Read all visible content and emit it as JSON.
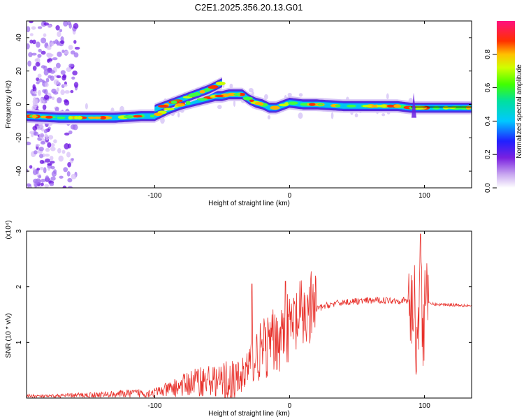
{
  "title": "C2E1.2025.356.20.13.G01",
  "chart_data": [
    {
      "type": "heatmap",
      "title": "C2E1.2025.356.20.13.G01",
      "xlabel": "Height of straight line (km)",
      "ylabel": "Frequency (Hz)",
      "xlim": [
        -195,
        135
      ],
      "ylim": [
        -50,
        50
      ],
      "x_ticks": [
        -100,
        0,
        100
      ],
      "x_tick_labels": [
        "-100",
        "0",
        "100"
      ],
      "y_ticks": [
        -40,
        -20,
        0,
        20,
        40
      ],
      "y_tick_labels": [
        "-40",
        "-20",
        "0",
        "20",
        "40"
      ],
      "colorbar": {
        "label": "Normalized spectral amplitude",
        "range": [
          0,
          1
        ],
        "ticks": [
          0.0,
          0.2,
          0.4,
          0.6,
          0.8
        ],
        "tick_labels": [
          "0.0",
          "0.2",
          "0.4",
          "0.6",
          "0.8"
        ]
      },
      "ridge": {
        "x": [
          -195,
          -170,
          -150,
          -130,
          -110,
          -100,
          -90,
          -80,
          -70,
          -60,
          -55,
          -50,
          -45,
          -40,
          -35,
          -30,
          -25,
          -20,
          -15,
          -10,
          0,
          10,
          20,
          40,
          60,
          80,
          90,
          95,
          100,
          120,
          135
        ],
        "y": [
          -7,
          -8,
          -8,
          -8,
          -7,
          -7,
          -3,
          0,
          2,
          4,
          5,
          5,
          6,
          6,
          6,
          3,
          1,
          0,
          -2,
          -2,
          1,
          0,
          0,
          -1,
          -1,
          -1,
          -2,
          -2,
          -2,
          -2,
          -2
        ]
      },
      "upper_branch": {
        "x": [
          -100,
          -90,
          -80,
          -70,
          -60,
          -55,
          -50
        ],
        "y": [
          -3,
          0,
          3,
          6,
          9,
          11,
          13
        ]
      },
      "spike_x": 92,
      "noise_band_x": [
        -195,
        -157
      ]
    },
    {
      "type": "line",
      "xlabel": "Height of straight line (km)",
      "ylabel": "SNR (10 * v/v)",
      "y_multiplier": "(x10⁴)",
      "xlim": [
        -195,
        135
      ],
      "ylim": [
        0,
        3
      ],
      "x_ticks": [
        -100,
        0,
        100
      ],
      "x_tick_labels": [
        "-100",
        "0",
        "100"
      ],
      "y_ticks": [
        1,
        2,
        3
      ],
      "y_tick_labels": [
        "1",
        "2",
        "3"
      ],
      "series": [
        {
          "name": "SNR",
          "color": "#e8302a",
          "x": [
            -195,
            -180,
            -160,
            -140,
            -120,
            -100,
            -90,
            -80,
            -70,
            -60,
            -50,
            -40,
            -35,
            -30,
            -25,
            -20,
            -15,
            -10,
            -5,
            0,
            5,
            10,
            15,
            20,
            30,
            40,
            50,
            60,
            70,
            80,
            85,
            90,
            93,
            95,
            97,
            99,
            101,
            103,
            110,
            120,
            135
          ],
          "y": [
            0.04,
            0.03,
            0.05,
            0.06,
            0.08,
            0.1,
            0.15,
            0.22,
            0.3,
            0.32,
            0.3,
            0.25,
            0.4,
            0.55,
            0.75,
            0.85,
            0.95,
            1.05,
            1.15,
            1.25,
            1.35,
            1.45,
            1.55,
            1.6,
            1.68,
            1.72,
            1.74,
            1.75,
            1.76,
            1.75,
            1.76,
            1.7,
            1.5,
            0.9,
            2.95,
            0.7,
            2.5,
            1.7,
            1.68,
            1.68,
            1.66
          ]
        }
      ]
    }
  ]
}
